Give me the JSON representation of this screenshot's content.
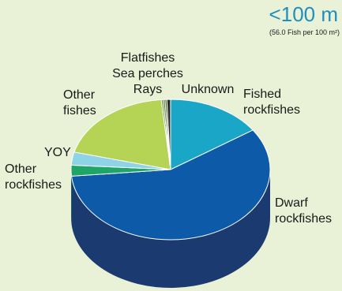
{
  "chart_data": {
    "type": "pie",
    "title": "<100 m",
    "subtitle": "(56.0 Fish per 100 m²)",
    "slices": [
      {
        "label": "Fished rockfishes",
        "lines": [
          "Fished",
          "rockfishes"
        ],
        "value": 15.5,
        "color": "#1aa6c6",
        "side_color": "#0e6f88"
      },
      {
        "label": "Dwarf rockfishes",
        "lines": [
          "Dwarf",
          "rockfishes"
        ],
        "value": 58.0,
        "color": "#0c5aa8",
        "side_color": "#1a3a70"
      },
      {
        "label": "Other rockfishes",
        "lines": [
          "Other",
          "rockfishes"
        ],
        "value": 2.5,
        "color": "#1ea567",
        "side_color": "#137043"
      },
      {
        "label": "YOY",
        "lines": [
          "YOY"
        ],
        "value": 3.0,
        "color": "#8fd3e6",
        "side_color": "#5e9fb2"
      },
      {
        "label": "Other fishes",
        "lines": [
          "Other",
          "fishes"
        ],
        "value": 19.5,
        "color": "#b5d455",
        "side_color": "#7f9a33"
      },
      {
        "label": "Flatfishes",
        "lines": [
          "Flatfishes"
        ],
        "value": 0.3,
        "color": "#6b8f2e",
        "side_color": "#4a6620"
      },
      {
        "label": "Sea perches",
        "lines": [
          "Sea perches"
        ],
        "value": 0.3,
        "color": "#4d7a25",
        "side_color": "#355519"
      },
      {
        "label": "Rays",
        "lines": [
          "Rays"
        ],
        "value": 0.3,
        "color": "#3a5f1d",
        "side_color": "#284314"
      },
      {
        "label": "Unknown",
        "lines": [
          "Unknown"
        ],
        "value": 0.6,
        "color": "#2b2b2b",
        "side_color": "#1a1a1a"
      }
    ]
  }
}
